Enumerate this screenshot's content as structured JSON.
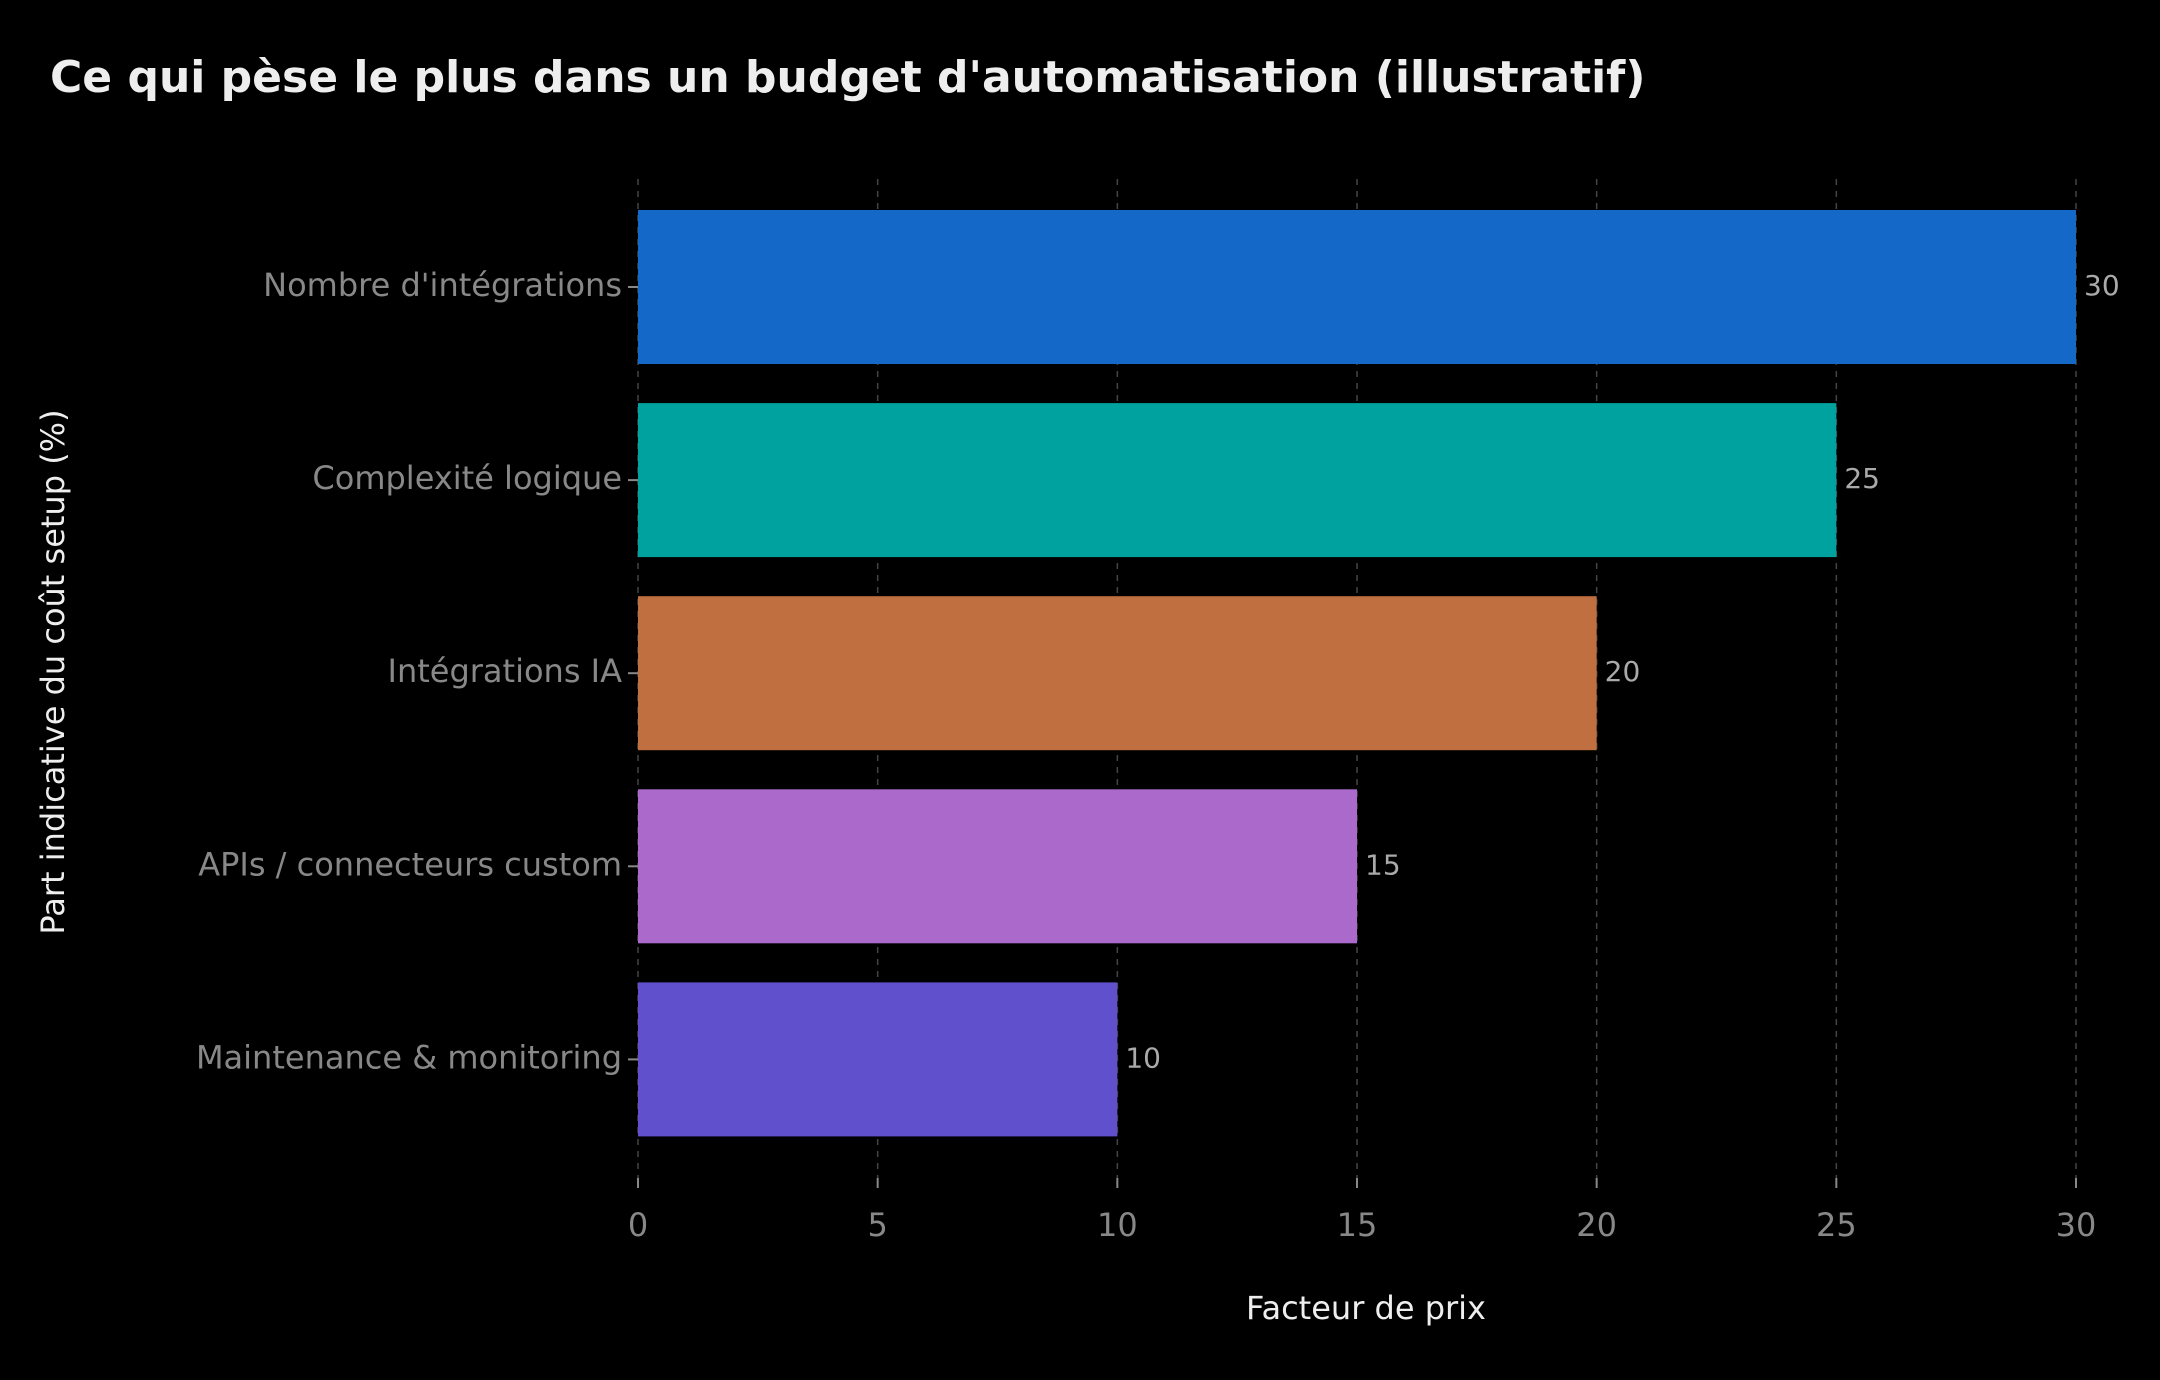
{
  "chart_data": {
    "type": "bar",
    "orientation": "horizontal",
    "title": "Ce qui pèse le plus dans un budget d'automatisation (illustratif)",
    "xlabel": "Facteur de prix",
    "ylabel": "Part indicative du coût setup (%)",
    "categories": [
      "Nombre d'intégrations",
      "Complexité logique",
      "Intégrations IA",
      "APIs / connecteurs custom",
      "Maintenance & monitoring"
    ],
    "values": [
      30,
      25,
      20,
      15,
      10
    ],
    "colors": [
      "#1368c8",
      "#00a29f",
      "#bf6f40",
      "#aa69cb",
      "#6050cc"
    ],
    "xlim": [
      0,
      30
    ],
    "xticks": [
      0,
      5,
      10,
      15,
      20,
      25,
      30
    ],
    "grid": true
  }
}
